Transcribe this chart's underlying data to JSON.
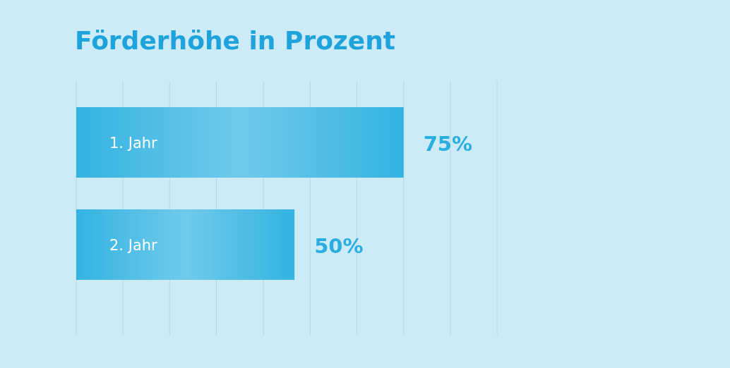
{
  "chart_data": {
    "type": "bar",
    "orientation": "horizontal",
    "title": "Förderhöhe in Prozent",
    "categories": [
      "1. Jahr",
      "2. Jahr"
    ],
    "values": [
      75,
      50
    ],
    "color": "#33b3e2",
    "value_labels": [
      "75%",
      "50%"
    ],
    "xlim": [
      0,
      96.4
    ],
    "xticks": [
      {
        "value": 0,
        "label": null
      },
      {
        "value": 10.7,
        "label": null
      },
      {
        "value": 21.4,
        "label": null
      },
      {
        "value": 32.1,
        "label": null
      },
      {
        "value": 42.9,
        "label": null
      },
      {
        "value": 53.6,
        "label": null
      },
      {
        "value": 64.3,
        "label": null
      },
      {
        "value": 75,
        "label": null
      },
      {
        "value": 85.7,
        "label": null
      },
      {
        "value": 96.4,
        "label": null
      }
    ],
    "grid": "x"
  }
}
